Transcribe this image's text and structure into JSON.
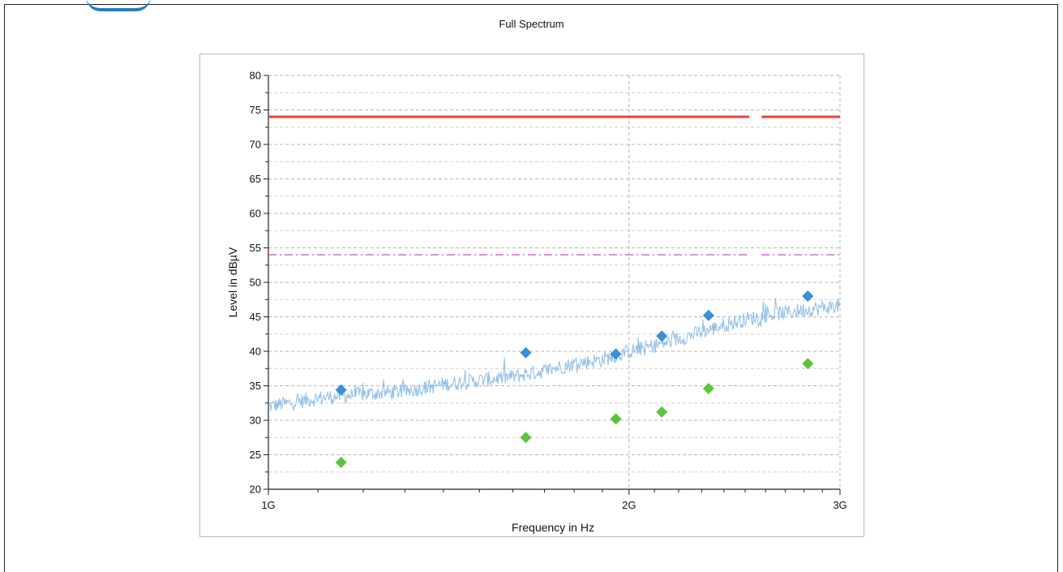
{
  "chart_data": {
    "type": "line",
    "title": "Full Spectrum",
    "xlabel": "Frequency in Hz",
    "ylabel": "Level in dBµV",
    "x_scale": "log",
    "xlim": [
      1000000000,
      3000000000
    ],
    "ylim": [
      20,
      80
    ],
    "x_ticks": [
      {
        "value": 1000000000,
        "label": "1G"
      },
      {
        "value": 2000000000,
        "label": "2G"
      },
      {
        "value": 3000000000,
        "label": "3G"
      }
    ],
    "y_ticks": [
      20,
      25,
      30,
      35,
      40,
      45,
      50,
      55,
      60,
      65,
      70,
      75,
      80
    ],
    "grid": true,
    "legend": "none",
    "limit_lines": [
      {
        "style": "solid",
        "color": "#e8413c",
        "segments": [
          [
            1000000000,
            2520000000,
            74
          ],
          [
            2580000000,
            3000000000,
            74
          ]
        ]
      },
      {
        "style": "dash-dot",
        "color": "#e040e0",
        "segments": [
          [
            1000000000,
            2520000000,
            54
          ],
          [
            2580000000,
            3000000000,
            54
          ]
        ]
      }
    ],
    "spectrum_trace": {
      "color": "#8cbde6",
      "points": [
        [
          1000000000,
          32
        ],
        [
          1100000000,
          33.2
        ],
        [
          1200000000,
          33.8
        ],
        [
          1300000000,
          34.2
        ],
        [
          1400000000,
          35.2
        ],
        [
          1500000000,
          35.8
        ],
        [
          1600000000,
          36.3
        ],
        [
          1700000000,
          37.2
        ],
        [
          1800000000,
          38.2
        ],
        [
          1900000000,
          38.8
        ],
        [
          2000000000,
          40.0
        ],
        [
          2100000000,
          40.8
        ],
        [
          2200000000,
          41.8
        ],
        [
          2300000000,
          42.8
        ],
        [
          2400000000,
          43.8
        ],
        [
          2500000000,
          44.6
        ],
        [
          2600000000,
          45.2
        ],
        [
          2700000000,
          45.6
        ],
        [
          2800000000,
          46.0
        ],
        [
          2900000000,
          46.3
        ],
        [
          3000000000,
          46.6
        ]
      ]
    },
    "series": [
      {
        "marker": "diamond",
        "color": "#3a8fd6",
        "points": [
          [
            1150000000,
            34.4
          ],
          [
            1640000000,
            39.8
          ],
          [
            1950000000,
            39.6
          ],
          [
            2130000000,
            42.2
          ],
          [
            2330000000,
            45.2
          ],
          [
            2820000000,
            48.0
          ]
        ]
      },
      {
        "marker": "diamond",
        "color": "#5cc43a",
        "points": [
          [
            1150000000,
            23.9
          ],
          [
            1640000000,
            27.5
          ],
          [
            1950000000,
            30.2
          ],
          [
            2130000000,
            31.2
          ],
          [
            2330000000,
            34.6
          ],
          [
            2820000000,
            38.2
          ]
        ]
      }
    ]
  }
}
